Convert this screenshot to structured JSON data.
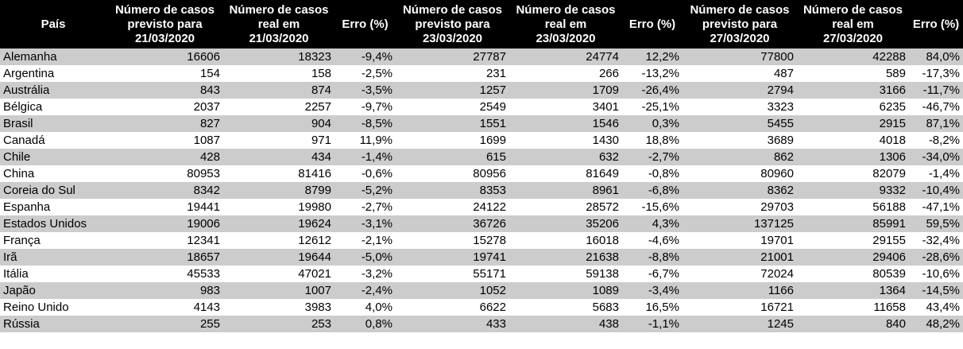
{
  "headers": [
    "País",
    "Número de casos\nprevisto para\n21/03/2020",
    "Número de casos\nreal em\n21/03/2020",
    "Erro (%)",
    "Número de casos\nprevisto para\n23/03/2020",
    "Número de casos\nreal em\n23/03/2020",
    "Erro (%)",
    "Número de casos\nprevisto para\n27/03/2020",
    "Número de casos\nreal em\n27/03/2020",
    "Erro (%)"
  ],
  "rows": [
    [
      "Alemanha",
      "16606",
      "18323",
      "-9,4%",
      "27787",
      "24774",
      "12,2%",
      "77800",
      "42288",
      "84,0%"
    ],
    [
      "Argentina",
      "154",
      "158",
      "-2,5%",
      "231",
      "266",
      "-13,2%",
      "487",
      "589",
      "-17,3%"
    ],
    [
      "Austrália",
      "843",
      "874",
      "-3,5%",
      "1257",
      "1709",
      "-26,4%",
      "2794",
      "3166",
      "-11,7%"
    ],
    [
      "Bélgica",
      "2037",
      "2257",
      "-9,7%",
      "2549",
      "3401",
      "-25,1%",
      "3323",
      "6235",
      "-46,7%"
    ],
    [
      "Brasil",
      "827",
      "904",
      "-8,5%",
      "1551",
      "1546",
      "0,3%",
      "5455",
      "2915",
      "87,1%"
    ],
    [
      "Canadá",
      "1087",
      "971",
      "11,9%",
      "1699",
      "1430",
      "18,8%",
      "3689",
      "4018",
      "-8,2%"
    ],
    [
      "Chile",
      "428",
      "434",
      "-1,4%",
      "615",
      "632",
      "-2,7%",
      "862",
      "1306",
      "-34,0%"
    ],
    [
      "China",
      "80953",
      "81416",
      "-0,6%",
      "80956",
      "81649",
      "-0,8%",
      "80960",
      "82079",
      "-1,4%"
    ],
    [
      "Coreia do Sul",
      "8342",
      "8799",
      "-5,2%",
      "8353",
      "8961",
      "-6,8%",
      "8362",
      "9332",
      "-10,4%"
    ],
    [
      "Espanha",
      "19441",
      "19980",
      "-2,7%",
      "24122",
      "28572",
      "-15,6%",
      "29703",
      "56188",
      "-47,1%"
    ],
    [
      "Estados Unidos",
      "19006",
      "19624",
      "-3,1%",
      "36726",
      "35206",
      "4,3%",
      "137125",
      "85991",
      "59,5%"
    ],
    [
      "França",
      "12341",
      "12612",
      "-2,1%",
      "15278",
      "16018",
      "-4,6%",
      "19701",
      "29155",
      "-32,4%"
    ],
    [
      "Irã",
      "18657",
      "19644",
      "-5,0%",
      "19741",
      "21638",
      "-8,8%",
      "21001",
      "29406",
      "-28,6%"
    ],
    [
      "Itália",
      "45533",
      "47021",
      "-3,2%",
      "55171",
      "59138",
      "-6,7%",
      "72024",
      "80539",
      "-10,6%"
    ],
    [
      "Japão",
      "983",
      "1007",
      "-2,4%",
      "1052",
      "1089",
      "-3,4%",
      "1166",
      "1364",
      "-14,5%"
    ],
    [
      "Reino Unido",
      "4143",
      "3983",
      "4,0%",
      "6622",
      "5683",
      "16,5%",
      "16721",
      "11658",
      "43,4%"
    ],
    [
      "Rússia",
      "255",
      "253",
      "0,8%",
      "433",
      "438",
      "-1,1%",
      "1245",
      "840",
      "48,2%"
    ]
  ]
}
